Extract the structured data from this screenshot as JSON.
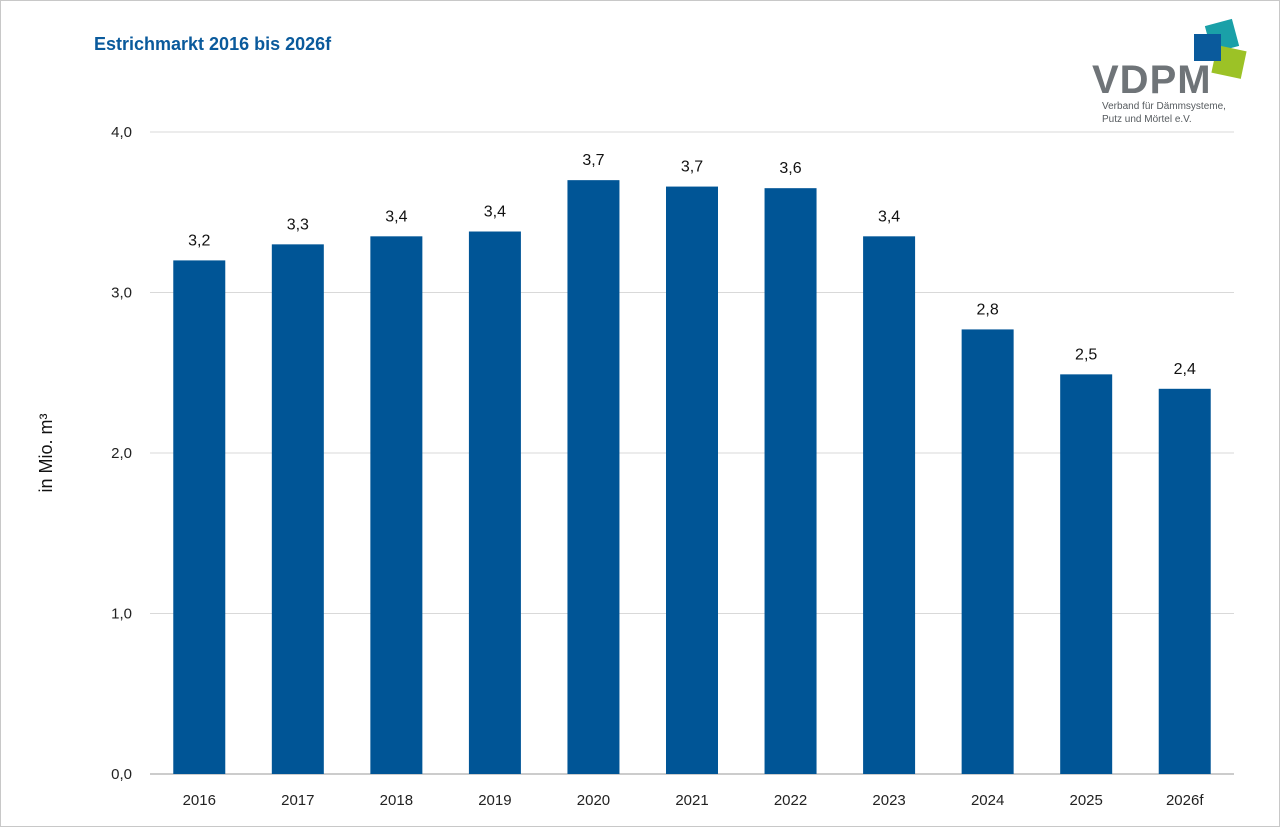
{
  "brand": {
    "name": "VDPM",
    "subtitle_line1": "Verband für Dämmsysteme,",
    "subtitle_line2": "Putz und Mörtel e.V.",
    "colors": [
      "#0a5a9c",
      "#1aa0a8",
      "#9cc226",
      "#6f7478"
    ]
  },
  "chart_data": {
    "type": "bar",
    "title": "Estrichmarkt 2016 bis 2026f",
    "xlabel": "",
    "ylabel": "in Mio. m³",
    "categories": [
      "2016",
      "2017",
      "2018",
      "2019",
      "2020",
      "2021",
      "2022",
      "2023",
      "2024",
      "2025",
      "2026f"
    ],
    "values": [
      3.2,
      3.3,
      3.35,
      3.38,
      3.7,
      3.66,
      3.65,
      3.35,
      2.77,
      2.49,
      2.4
    ],
    "data_labels": [
      "3,2",
      "3,3",
      "3,4",
      "3,4",
      "3,7",
      "3,7",
      "3,6",
      "3,4",
      "2,8",
      "2,5",
      "2,4"
    ],
    "ylim": [
      0,
      4
    ],
    "yticks": [
      0,
      1,
      2,
      3,
      4
    ],
    "ytick_labels": [
      "0,0",
      "1,0",
      "2,0",
      "3,0",
      "4,0"
    ],
    "grid": true,
    "bar_color": "#005596"
  }
}
